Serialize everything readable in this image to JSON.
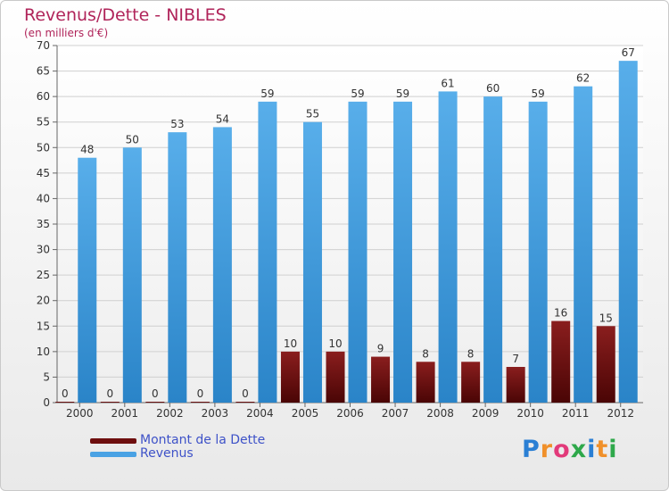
{
  "title": "Revenus/Dette - NIBLES",
  "subtitle": "(en milliers d'€)",
  "logo": {
    "text": "Proxiti",
    "colors": [
      "#2a7fd4",
      "#f0902a",
      "#e23a7a",
      "#2ea84a",
      "#2a7fd4",
      "#f0902a",
      "#2ea84a"
    ]
  },
  "legend": [
    {
      "label": "Montant de la Dette",
      "color": "#6e0e0e"
    },
    {
      "label": "Revenus",
      "color": "#4aa2e4"
    }
  ],
  "chart_data": {
    "type": "bar",
    "categories": [
      "2000",
      "2001",
      "2002",
      "2003",
      "2004",
      "2005",
      "2006",
      "2007",
      "2008",
      "2009",
      "2010",
      "2011",
      "2012"
    ],
    "series": [
      {
        "name": "Montant de la Dette",
        "color": "#6e0e0e",
        "values": [
          0,
          0,
          0,
          0,
          0,
          10,
          10,
          9,
          8,
          8,
          7,
          16,
          15
        ]
      },
      {
        "name": "Revenus",
        "color": "#4aa2e4",
        "values": [
          48,
          50,
          53,
          54,
          59,
          55,
          59,
          59,
          61,
          60,
          59,
          62,
          67
        ]
      }
    ],
    "ylim": [
      0,
      70
    ],
    "yticks": [
      0,
      5,
      10,
      15,
      20,
      25,
      30,
      35,
      40,
      45,
      50,
      55,
      60,
      65,
      70
    ],
    "grid": true,
    "legend_position": "bottom-left"
  }
}
